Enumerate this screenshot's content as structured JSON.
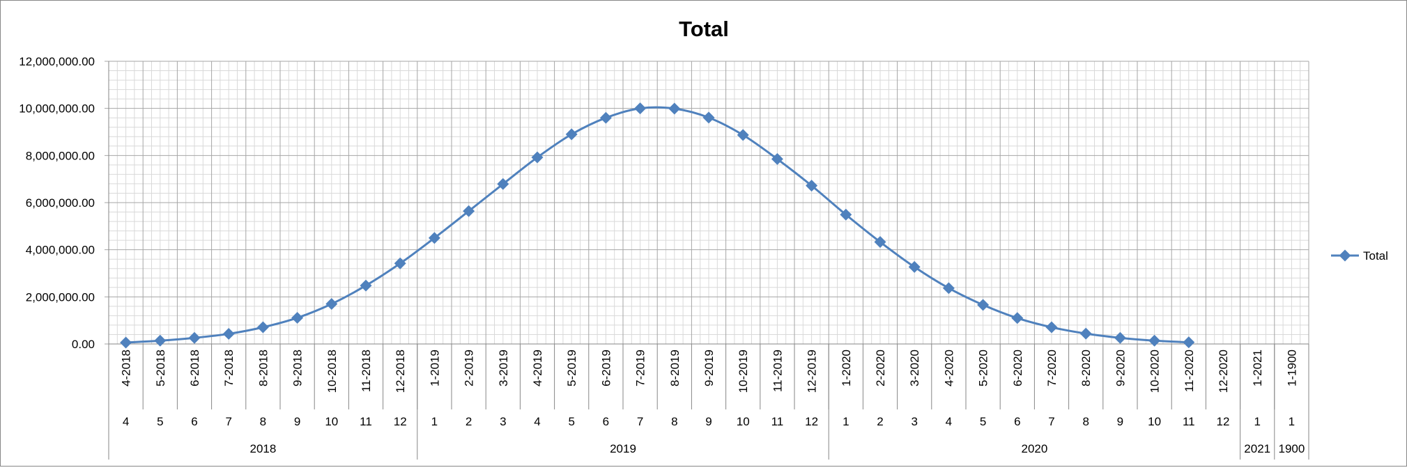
{
  "chart_data": {
    "type": "line",
    "title": "Total",
    "xlabel": "",
    "ylabel": "",
    "ylim": [
      0,
      12000000
    ],
    "yticks": [
      "0.00",
      "2,000,000.00",
      "4,000,000.00",
      "6,000,000.00",
      "8,000,000.00",
      "10,000,000.00",
      "12,000,000.00"
    ],
    "grid": true,
    "legend": {
      "position": "right",
      "entries": [
        "Total"
      ]
    },
    "categories": [
      "4-2018",
      "5-2018",
      "6-2018",
      "7-2018",
      "8-2018",
      "9-2018",
      "10-2018",
      "11-2018",
      "12-2018",
      "1-2019",
      "2-2019",
      "3-2019",
      "4-2019",
      "5-2019",
      "6-2019",
      "7-2019",
      "8-2019",
      "9-2019",
      "10-2019",
      "11-2019",
      "12-2019",
      "1-2020",
      "2-2020",
      "3-2020",
      "4-2020",
      "5-2020",
      "6-2020",
      "7-2020",
      "8-2020",
      "9-2020",
      "10-2020",
      "11-2020",
      "12-2020",
      "1-2021",
      "1-1900"
    ],
    "category_months": [
      "4",
      "5",
      "6",
      "7",
      "8",
      "9",
      "10",
      "11",
      "12",
      "1",
      "2",
      "3",
      "4",
      "5",
      "6",
      "7",
      "8",
      "9",
      "10",
      "11",
      "12",
      "1",
      "2",
      "3",
      "4",
      "5",
      "6",
      "7",
      "8",
      "9",
      "10",
      "11",
      "12",
      "1",
      "1"
    ],
    "year_groups": [
      {
        "label": "2018",
        "count": 9
      },
      {
        "label": "2019",
        "count": 12
      },
      {
        "label": "2020",
        "count": 12
      },
      {
        "label": "2021",
        "count": 1
      },
      {
        "label": "1900",
        "count": 1
      }
    ],
    "series": [
      {
        "name": "Total",
        "color": "#4f81bd",
        "values": [
          60000,
          140000,
          260000,
          430000,
          710000,
          1110000,
          1700000,
          2480000,
          3420000,
          4500000,
          5640000,
          6790000,
          7920000,
          8900000,
          9600000,
          10000000,
          9990000,
          9610000,
          8870000,
          7850000,
          6720000,
          5490000,
          4330000,
          3270000,
          2370000,
          1660000,
          1100000,
          710000,
          440000,
          260000,
          140000,
          70000,
          null,
          null,
          null
        ]
      }
    ]
  }
}
